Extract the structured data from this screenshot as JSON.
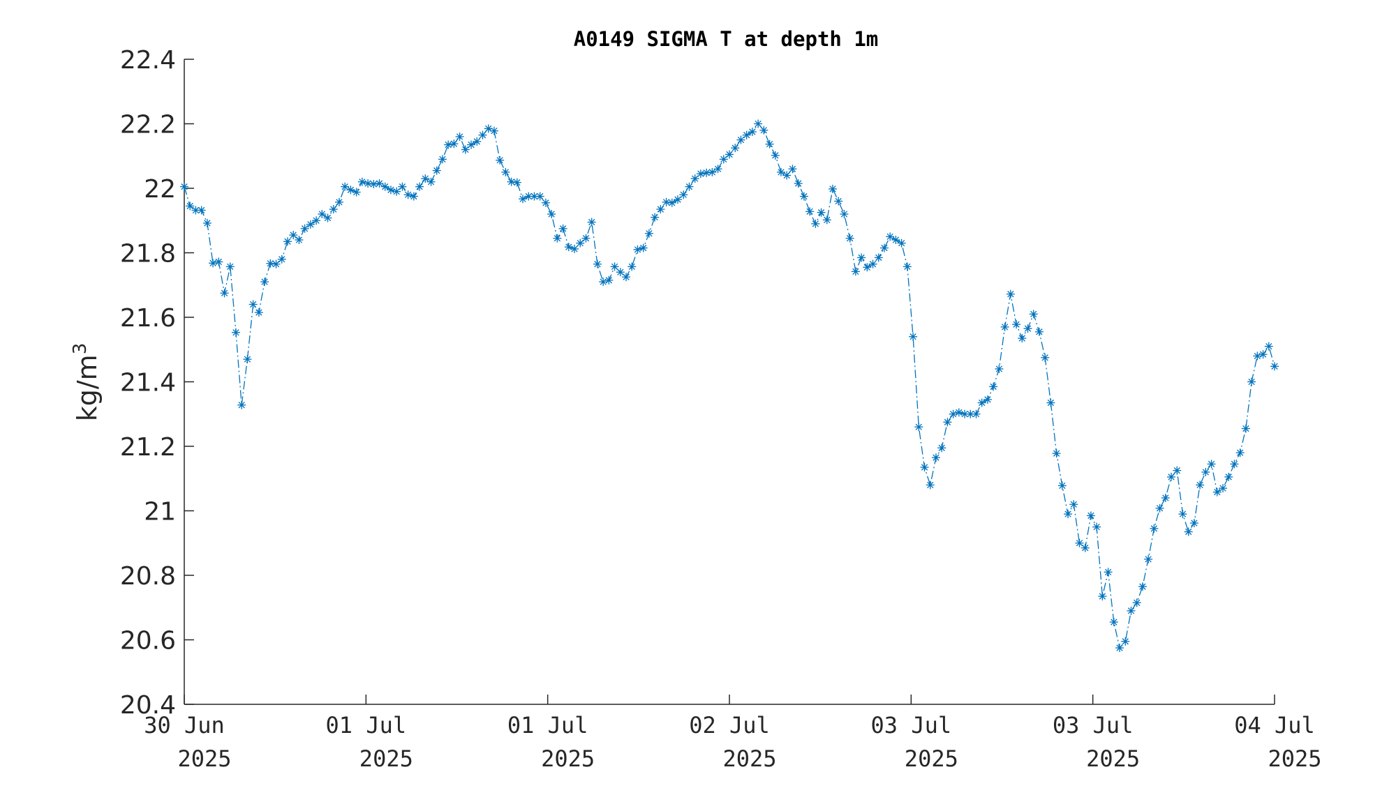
{
  "chart_data": {
    "type": "line",
    "title": "A0149 SIGMA T at depth 1m",
    "ylabel": "kg/m",
    "ylabel_sup": "3",
    "xlabel": "",
    "ylim": [
      20.4,
      22.4
    ],
    "yticks": [
      20.4,
      20.6,
      20.8,
      21,
      21.2,
      21.4,
      21.6,
      21.8,
      22,
      22.2,
      22.4
    ],
    "ytick_labels": [
      "20.4",
      "20.6",
      "20.8",
      "21",
      "21.2",
      "21.4",
      "21.6",
      "21.8",
      "22",
      "22.2",
      "22.4"
    ],
    "xlim": [
      0,
      4
    ],
    "xtick_labels": [
      {
        "line1": "30 Jun",
        "line2": "2025"
      },
      {
        "line1": "01 Jul",
        "line2": "2025"
      },
      {
        "line1": "01 Jul",
        "line2": "2025"
      },
      {
        "line1": "02 Jul",
        "line2": "2025"
      },
      {
        "line1": "03 Jul",
        "line2": "2025"
      },
      {
        "line1": "03 Jul",
        "line2": "2025"
      },
      {
        "line1": "04 Jul",
        "line2": "2025"
      }
    ],
    "grid": false,
    "legend": "none",
    "line_style": "dash-dot",
    "marker": "asterisk",
    "series": [
      {
        "values": [
          22.005,
          21.945,
          21.932,
          21.932,
          21.892,
          21.768,
          21.772,
          21.675,
          21.757,
          21.553,
          21.328,
          21.47,
          21.64,
          21.615,
          21.71,
          21.767,
          21.765,
          21.78,
          21.835,
          21.855,
          21.84,
          21.875,
          21.888,
          21.9,
          21.92,
          21.908,
          21.935,
          21.957,
          22.005,
          21.995,
          21.988,
          22.02,
          22.015,
          22.013,
          22.015,
          22.005,
          21.995,
          21.99,
          22.005,
          21.98,
          21.975,
          22.005,
          22.03,
          22.02,
          22.055,
          22.09,
          22.135,
          22.138,
          22.16,
          22.12,
          22.135,
          22.145,
          22.165,
          22.185,
          22.178,
          22.087,
          22.05,
          22.02,
          22.018,
          21.967,
          21.975,
          21.975,
          21.975,
          21.955,
          21.92,
          21.845,
          21.875,
          21.818,
          21.812,
          21.83,
          21.845,
          21.895,
          21.765,
          21.71,
          21.715,
          21.757,
          21.74,
          21.725,
          21.757,
          21.81,
          21.815,
          21.86,
          21.91,
          21.935,
          21.957,
          21.955,
          21.965,
          21.98,
          22.005,
          22.03,
          22.045,
          22.048,
          22.05,
          22.06,
          22.09,
          22.105,
          22.125,
          22.15,
          22.165,
          22.175,
          22.2,
          22.18,
          22.137,
          22.102,
          22.05,
          22.04,
          22.06,
          22.015,
          21.975,
          21.928,
          21.89,
          21.925,
          21.902,
          21.998,
          21.96,
          21.92,
          21.845,
          21.742,
          21.785,
          21.755,
          21.765,
          21.785,
          21.815,
          21.85,
          21.84,
          21.83,
          21.757,
          21.54,
          21.26,
          21.135,
          21.08,
          21.165,
          21.195,
          21.275,
          21.3,
          21.305,
          21.3,
          21.3,
          21.3,
          21.335,
          21.345,
          21.385,
          21.44,
          21.57,
          21.672,
          21.578,
          21.535,
          21.565,
          21.61,
          21.555,
          21.475,
          21.335,
          21.178,
          21.078,
          20.99,
          21.02,
          20.9,
          20.885,
          20.985,
          20.95,
          20.735,
          20.81,
          20.655,
          20.575,
          20.595,
          20.69,
          20.715,
          20.765,
          20.85,
          20.945,
          21.008,
          21.04,
          21.105,
          21.125,
          20.99,
          20.935,
          20.962,
          21.08,
          21.12,
          21.145,
          21.058,
          21.07,
          21.105,
          21.145,
          21.18,
          21.255,
          21.4,
          21.48,
          21.485,
          21.51,
          21.448
        ]
      }
    ]
  },
  "colors": {
    "series": "#0072BD",
    "axis": "#262626",
    "title": "#000000",
    "background": "#ffffff"
  }
}
